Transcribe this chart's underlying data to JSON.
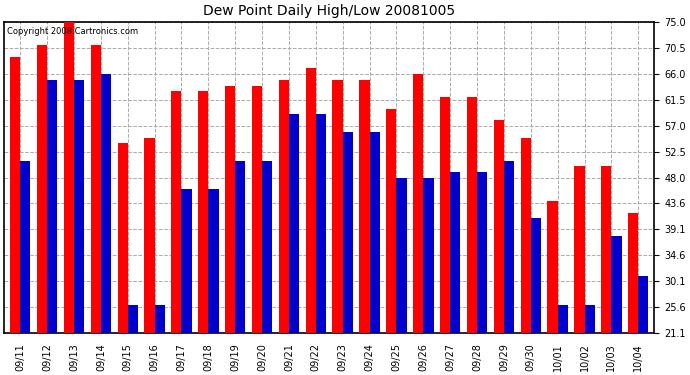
{
  "title": "Dew Point Daily High/Low 20081005",
  "copyright": "Copyright 2008 Cartronics.com",
  "dates": [
    "09/11",
    "09/12",
    "09/13",
    "09/14",
    "09/15",
    "09/16",
    "09/17",
    "09/18",
    "09/19",
    "09/20",
    "09/21",
    "09/22",
    "09/23",
    "09/24",
    "09/25",
    "09/26",
    "09/27",
    "09/28",
    "09/29",
    "09/30",
    "10/01",
    "10/02",
    "10/03",
    "10/04"
  ],
  "highs": [
    69,
    71,
    75,
    71,
    54,
    55,
    63,
    63,
    64,
    64,
    65,
    67,
    65,
    65,
    60,
    66,
    62,
    62,
    58,
    55,
    44,
    50,
    50,
    42
  ],
  "lows": [
    51,
    65,
    65,
    66,
    26,
    26,
    46,
    46,
    51,
    51,
    59,
    59,
    56,
    56,
    48,
    48,
    49,
    49,
    51,
    41,
    26,
    26,
    38,
    31
  ],
  "high_color": "#ff0000",
  "low_color": "#0000cc",
  "bg_color": "#ffffff",
  "grid_color": "#aaaaaa",
  "ymin": 21.1,
  "ymax": 75.0,
  "yticks": [
    21.1,
    25.6,
    30.1,
    34.6,
    39.1,
    43.6,
    48.0,
    52.5,
    57.0,
    61.5,
    66.0,
    70.5,
    75.0
  ],
  "bar_width": 0.38,
  "figwidth": 6.9,
  "figheight": 3.75,
  "dpi": 100
}
